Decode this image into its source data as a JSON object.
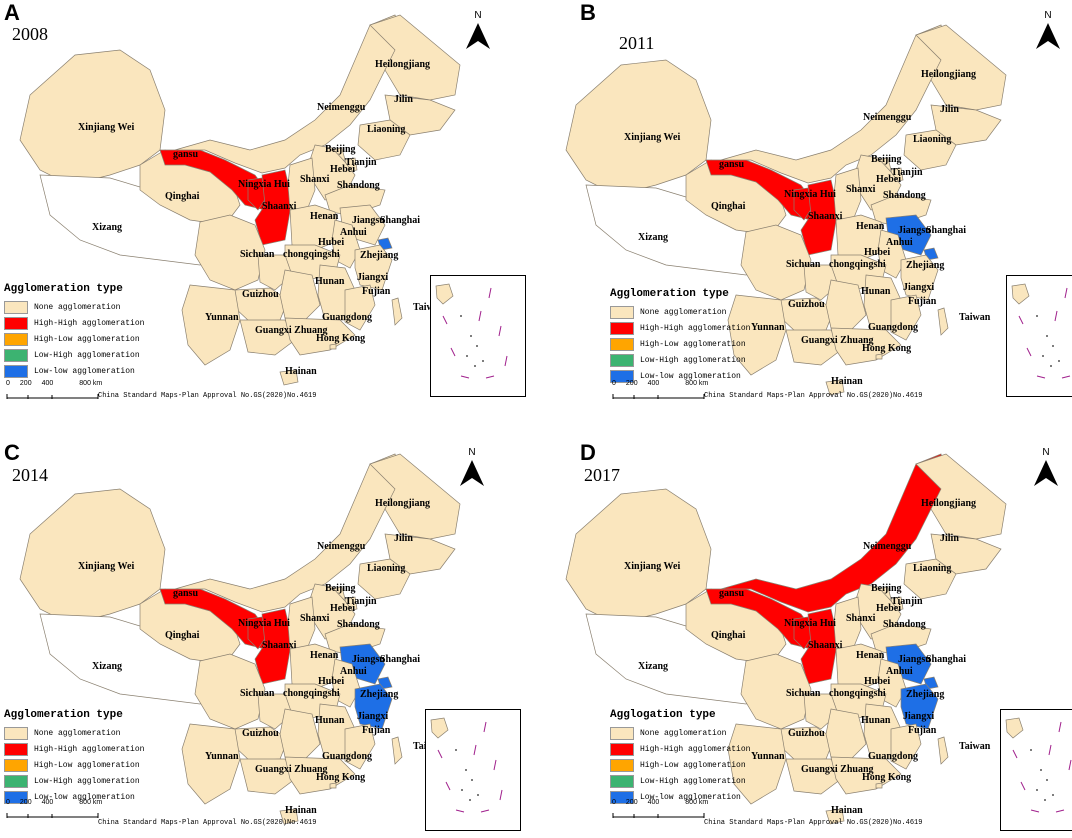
{
  "colors": {
    "none": "#FAE6BE",
    "hh": "#FF0000",
    "hl": "#FFA500",
    "lh": "#3CB371",
    "ll": "#1E6FE6",
    "border": "#8a8070"
  },
  "north_label": "N",
  "approval_text": "China Standard Maps-Plan Approval No.GS(2020)No.4619",
  "scale": {
    "ticks": [
      "0",
      "200",
      "400",
      "800 km"
    ]
  },
  "legend_items": [
    {
      "label": "None agglomeration",
      "color": "#FAE6BE"
    },
    {
      "label": "High-High agglomeration",
      "color": "#FF0000"
    },
    {
      "label": "High-Low agglomeration",
      "color": "#FFA500"
    },
    {
      "label": "Low-High agglomeration",
      "color": "#3CB371"
    },
    {
      "label": "Low-low agglomeration",
      "color": "#1E6FE6"
    }
  ],
  "provinces": [
    "Heilongjiang",
    "Jilin",
    "Liaoning",
    "Neimenggu",
    "Xinjiang Wei",
    "Beijing",
    "Tianjin",
    "gansu",
    "Hebei",
    "Shanxi",
    "Shandong",
    "Ningxia Hui",
    "Qinghai",
    "Shaanxi",
    "Henan",
    "Jiangsu",
    "Shanghai",
    "Anhui",
    "Xizang",
    "Hubei",
    "Sichuan",
    "chongqingshi",
    "Zhejiang",
    "Hunan",
    "Jiangxi",
    "Fujian",
    "Guizhou",
    "Taiwan",
    "Yunnan",
    "Guangdong",
    "Guangxi Zhuang",
    "Hong Kong",
    "Hainan"
  ],
  "panels": [
    {
      "label": "A",
      "year": "2008",
      "legend_title": "Agglomeration type",
      "hh": [
        "gansu",
        "ningxia",
        "shaanxi"
      ],
      "ll": [
        "shanghai"
      ]
    },
    {
      "label": "B",
      "year": "2011",
      "legend_title": "Agglomeration type",
      "hh": [
        "gansu",
        "ningxia",
        "shaanxi"
      ],
      "ll": [
        "jiangsu",
        "shanghai"
      ]
    },
    {
      "label": "C",
      "year": "2014",
      "legend_title": "Agglomeration type",
      "hh": [
        "gansu",
        "ningxia",
        "shaanxi"
      ],
      "ll": [
        "jiangsu",
        "shanghai",
        "zhejiang"
      ]
    },
    {
      "label": "D",
      "year": "2017",
      "legend_title": "Agglogation type",
      "hh": [
        "neimenggu",
        "gansu",
        "ningxia",
        "shaanxi"
      ],
      "ll": [
        "jiangsu",
        "shanghai",
        "zhejiang"
      ]
    }
  ]
}
